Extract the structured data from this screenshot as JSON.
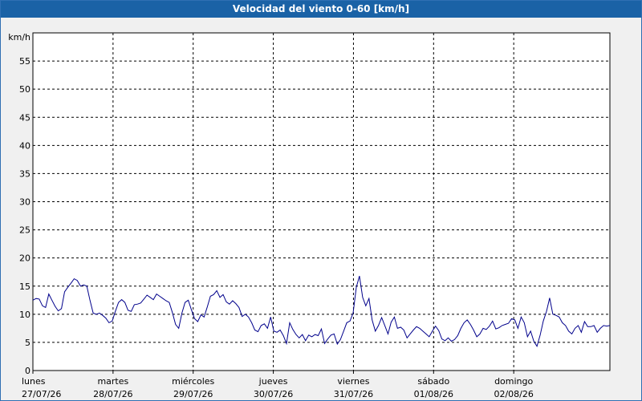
{
  "window": {
    "title": "Velocidad del viento 0-60 [km/h]"
  },
  "chart_data": {
    "type": "line",
    "title": "Velocidad del viento 0-60 [km/h]",
    "ylabel": "km/h",
    "ylim": [
      0,
      60
    ],
    "yticks": [
      0,
      5,
      10,
      15,
      20,
      25,
      30,
      35,
      40,
      45,
      50,
      55
    ],
    "xlim": [
      0,
      7.2
    ],
    "grid": true,
    "x_ticks": [
      {
        "pos": 0,
        "day": "lunes",
        "date": "27/07/26"
      },
      {
        "pos": 1,
        "day": "martes",
        "date": "28/07/26"
      },
      {
        "pos": 2,
        "day": "miércoles",
        "date": "29/07/26"
      },
      {
        "pos": 3,
        "day": "jueves",
        "date": "30/07/26"
      },
      {
        "pos": 4,
        "day": "viernes",
        "date": "31/07/26"
      },
      {
        "pos": 5,
        "day": "sábado",
        "date": "01/08/26"
      },
      {
        "pos": 6,
        "day": "domingo",
        "date": "02/08/26"
      }
    ],
    "line_color": "#00008b",
    "series": [
      {
        "values": [
          12.5,
          12.8,
          12.7,
          11.5,
          11.2,
          13.6,
          12.5,
          11.4,
          10.6,
          11.0,
          14.0,
          14.8,
          15.5,
          16.3,
          16.0,
          15.0,
          15.2,
          15.0,
          12.5,
          10.2,
          10.0,
          10.2,
          9.8,
          9.3,
          8.5,
          8.8,
          10.5,
          12.1,
          12.6,
          12.1,
          10.7,
          10.5,
          11.7,
          11.8,
          12.0,
          12.7,
          13.4,
          13.0,
          12.6,
          13.6,
          13.2,
          12.8,
          12.4,
          12.1,
          10.3,
          8.2,
          7.5,
          10.2,
          12.1,
          12.5,
          10.8,
          9.2,
          8.7,
          9.9,
          9.5,
          11.3,
          13.2,
          13.5,
          14.2,
          13.0,
          13.5,
          12.2,
          11.8,
          12.4,
          11.9,
          11.2,
          9.6,
          10.0,
          9.5,
          8.5,
          7.2,
          6.9,
          8.0,
          8.3,
          7.5,
          9.5,
          7.0,
          6.8,
          7.2,
          6.2,
          4.8,
          8.5,
          7.3,
          6.4,
          5.8,
          6.4,
          5.3,
          6.3,
          6.0,
          6.4,
          6.2,
          7.4,
          4.8,
          5.6,
          6.3,
          6.5,
          4.7,
          5.5,
          7.0,
          8.5,
          8.8,
          10.2,
          14.8,
          16.8,
          13.0,
          11.5,
          12.8,
          9.0,
          7.0,
          8.0,
          9.4,
          8.0,
          6.5,
          8.6,
          9.5,
          7.5,
          7.7,
          7.2,
          5.8,
          6.5,
          7.2,
          7.8,
          7.5,
          7.0,
          6.5,
          6.0,
          7.0,
          7.9,
          7.1,
          5.6,
          5.3,
          5.8,
          5.2,
          5.5,
          6.2,
          7.5,
          8.5,
          9.0,
          8.2,
          7.2,
          6.0,
          6.5,
          7.5,
          7.3,
          7.9,
          8.8,
          7.4,
          7.6,
          8.0,
          8.2,
          8.4,
          9.2,
          9.0,
          7.5,
          9.5,
          8.5,
          6.0,
          7.0,
          5.2,
          4.3,
          6.3,
          8.8,
          10.5,
          12.9,
          10.0,
          9.8,
          9.5,
          8.5,
          8.0,
          7.0,
          6.5,
          7.5,
          8.0,
          6.8,
          8.7,
          7.8,
          7.8,
          8.0,
          6.8,
          7.5,
          8.0,
          7.9,
          8.0
        ]
      }
    ]
  }
}
